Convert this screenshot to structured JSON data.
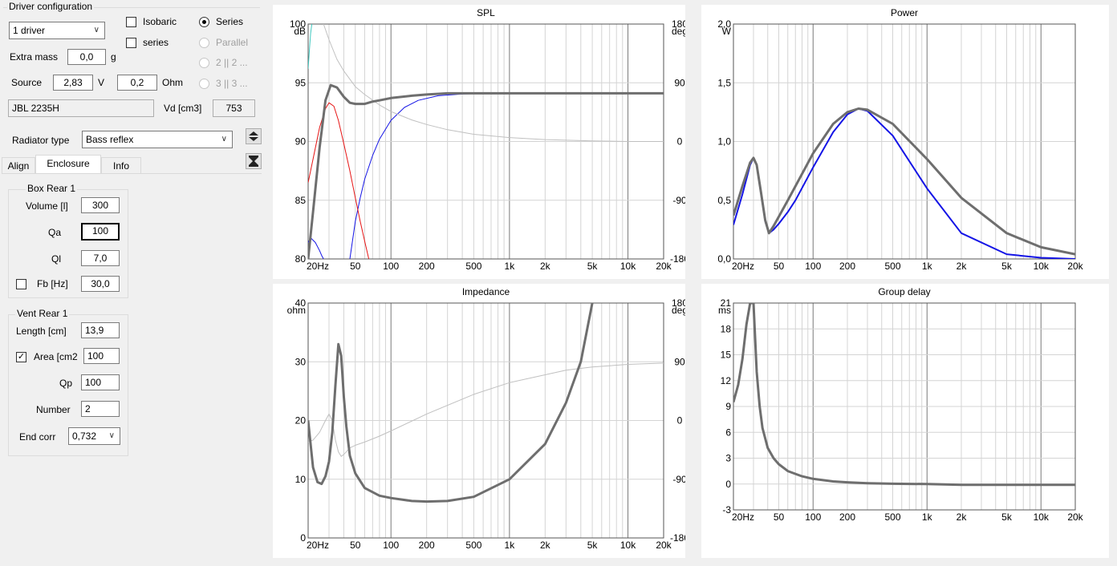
{
  "driver_config": {
    "title": "Driver configuration",
    "driver_count": "1 driver",
    "isobaric_label": "Isobaric",
    "series_check_label": "series",
    "radio_series": "Series",
    "radio_parallel": "Parallel",
    "radio_2x2": "2 || 2 ...",
    "radio_3x3": "3 || 3 ...",
    "extra_mass_label": "Extra mass",
    "extra_mass_value": "0,0",
    "extra_mass_unit": "g",
    "source_label": "Source",
    "source_voltage": "2,83",
    "voltage_unit": "V",
    "source_resistance": "0,2",
    "resistance_unit": "Ohm",
    "driver_name": "JBL 2235H",
    "vd_label": "Vd [cm3]",
    "vd_value": "753"
  },
  "radiator": {
    "label": "Radiator type",
    "value": "Bass reflex"
  },
  "tabs": [
    "Align",
    "Enclosure",
    "Info"
  ],
  "box": {
    "title": "Box Rear 1",
    "volume_label": "Volume [l]",
    "volume_value": "300",
    "qa_label": "Qa",
    "qa_value": "100",
    "ql_label": "Ql",
    "ql_value": "7,0",
    "fb_label": "Fb [Hz]",
    "fb_value": "30,0"
  },
  "vent": {
    "title": "Vent Rear 1",
    "length_label": "Length [cm]",
    "length_value": "13,9",
    "area_label": "Area [cm2",
    "area_value": "100",
    "qp_label": "Qp",
    "qp_value": "100",
    "number_label": "Number",
    "number_value": "2",
    "endcorr_label": "End corr",
    "endcorr_value": "0,732"
  },
  "colors": {
    "main_curve": "#6e6e6e",
    "phase_curve": "#c0c0c0",
    "blue": "#1414e6",
    "red": "#e61414",
    "cyan": "#40c8c0",
    "grid": "#d4d4d4",
    "grid_major": "#7a7a7a"
  },
  "chart_data": [
    {
      "type": "line",
      "title": "SPL",
      "ylabel": "dB",
      "y2label": "deg",
      "xscale": "log",
      "xlim": [
        20,
        20000
      ],
      "ylim": [
        80,
        100
      ],
      "y2lim": [
        -180,
        180
      ],
      "xticks": [
        "20Hz",
        "50",
        "100",
        "200",
        "500",
        "1k",
        "2k",
        "5k",
        "10k",
        "20k"
      ],
      "yticks": [
        "80",
        "85",
        "90",
        "95",
        "100"
      ],
      "y2ticks": [
        "-180",
        "-90",
        "0",
        "90",
        "180"
      ],
      "series": [
        {
          "color": "main_curve",
          "width": 3,
          "x": [
            20,
            22,
            25,
            28,
            31,
            35,
            40,
            45,
            50,
            60,
            70,
            80,
            100,
            150,
            200,
            300,
            500,
            1000,
            2000,
            5000,
            10000,
            20000
          ],
          "y": [
            80,
            84,
            89.5,
            93.5,
            94.8,
            94.6,
            93.8,
            93.3,
            93.2,
            93.2,
            93.4,
            93.5,
            93.7,
            93.9,
            94.0,
            94.1,
            94.1,
            94.1,
            94.1,
            94.1,
            94.1,
            94.1
          ]
        },
        {
          "color": "blue",
          "width": 1,
          "x": [
            45,
            50,
            55,
            60,
            70,
            80,
            100,
            130,
            170,
            250,
            400,
            700,
            1500,
            20000
          ],
          "y": [
            80,
            83.2,
            85.2,
            86.8,
            88.8,
            90.2,
            91.8,
            92.9,
            93.5,
            93.9,
            94.05,
            94.1,
            94.1,
            94.1
          ]
        },
        {
          "color": "red",
          "width": 1,
          "x": [
            20,
            22,
            25,
            28,
            30,
            33,
            36,
            40,
            45,
            50,
            55,
            60,
            65
          ],
          "y": [
            86.5,
            88.5,
            91.2,
            92.8,
            93.3,
            93.0,
            91.8,
            89.8,
            87.5,
            85.2,
            83.2,
            81.5,
            80
          ]
        },
        {
          "color": "blue",
          "width": 1,
          "x": [
            20,
            21,
            23,
            25,
            26,
            27
          ],
          "y": [
            81.4,
            81.8,
            81.4,
            80.7,
            80.3,
            80
          ]
        },
        {
          "color": "phase_curve",
          "width": 1,
          "x": [
            27,
            30,
            35,
            40,
            50,
            60,
            80,
            100,
            150,
            200,
            300,
            500,
            1000,
            2000,
            5000,
            10000,
            20000
          ],
          "y": [
            180,
            156,
            126,
            108,
            84,
            72,
            56,
            46,
            33,
            26,
            18,
            11,
            6,
            3,
            1,
            0,
            0
          ]
        },
        {
          "color": "cyan",
          "width": 1,
          "x": [
            20,
            20.5,
            21,
            21.5
          ],
          "y": [
            96.2,
            97.8,
            99.2,
            100
          ]
        }
      ]
    },
    {
      "type": "line",
      "title": "Power",
      "ylabel": "W",
      "xscale": "log",
      "xlim": [
        20,
        20000
      ],
      "ylim": [
        0,
        2
      ],
      "xticks": [
        "20Hz",
        "50",
        "100",
        "200",
        "500",
        "1k",
        "2k",
        "5k",
        "10k",
        "20k"
      ],
      "yticks": [
        "0,0",
        "0,5",
        "1,0",
        "1,5",
        "2,0"
      ],
      "series": [
        {
          "color": "main_curve",
          "width": 3,
          "x": [
            20,
            24,
            28,
            30,
            32,
            35,
            38,
            41,
            45,
            50,
            60,
            70,
            100,
            150,
            200,
            250,
            300,
            500,
            1000,
            2000,
            5000,
            10000,
            20000
          ],
          "y": [
            0.37,
            0.62,
            0.82,
            0.86,
            0.8,
            0.56,
            0.33,
            0.22,
            0.28,
            0.36,
            0.5,
            0.62,
            0.9,
            1.15,
            1.25,
            1.28,
            1.27,
            1.15,
            0.85,
            0.52,
            0.22,
            0.1,
            0.04
          ]
        },
        {
          "color": "blue",
          "width": 2,
          "x": [
            20,
            24,
            28,
            30,
            32,
            35,
            38,
            41,
            45,
            50,
            60,
            70,
            100,
            150,
            200,
            250,
            300,
            500,
            1000,
            2000,
            5000,
            10000,
            20000
          ],
          "y": [
            0.29,
            0.55,
            0.8,
            0.86,
            0.8,
            0.55,
            0.32,
            0.22,
            0.25,
            0.3,
            0.4,
            0.5,
            0.78,
            1.08,
            1.23,
            1.28,
            1.26,
            1.05,
            0.6,
            0.22,
            0.04,
            0.01,
            0.0
          ]
        }
      ]
    },
    {
      "type": "line",
      "title": "Impedance",
      "ylabel": "ohm",
      "y2label": "deg",
      "xscale": "log",
      "xlim": [
        20,
        20000
      ],
      "ylim": [
        0,
        40
      ],
      "y2lim": [
        -180,
        180
      ],
      "xticks": [
        "20Hz",
        "50",
        "100",
        "200",
        "500",
        "1k",
        "2k",
        "5k",
        "10k",
        "20k"
      ],
      "yticks": [
        "0",
        "10",
        "20",
        "30",
        "40"
      ],
      "y2ticks": [
        "-180",
        "-90",
        "0",
        "90",
        "180"
      ],
      "series": [
        {
          "color": "main_curve",
          "width": 3,
          "x": [
            20,
            22,
            24,
            26,
            28,
            30,
            32,
            34,
            36,
            38,
            40,
            42,
            45,
            50,
            60,
            80,
            100,
            150,
            200,
            300,
            500,
            1000,
            2000,
            3000,
            4000,
            5000
          ],
          "y": [
            20,
            12,
            9.5,
            9.2,
            10.5,
            13,
            18,
            26,
            33,
            31,
            24,
            19,
            14,
            11,
            8.5,
            7.2,
            6.8,
            6.3,
            6.2,
            6.3,
            7,
            10,
            16,
            23,
            30,
            40
          ]
        },
        {
          "color": "phase_curve",
          "width": 1,
          "x": [
            20,
            22,
            25,
            28,
            30,
            32,
            34,
            36,
            38,
            40,
            45,
            50,
            60,
            80,
            100,
            200,
            500,
            1000,
            2000,
            3000,
            5000,
            10000,
            20000
          ],
          "y": [
            -33,
            -30,
            -18,
            0,
            10,
            0,
            -30,
            -48,
            -55,
            -52,
            -42,
            -38,
            -33,
            -24,
            -16,
            10,
            40,
            58,
            70,
            77,
            82,
            86,
            88
          ]
        }
      ]
    },
    {
      "type": "line",
      "title": "Group delay",
      "ylabel": "ms",
      "xscale": "log",
      "xlim": [
        20,
        20000
      ],
      "ylim": [
        -3,
        21
      ],
      "xticks": [
        "20Hz",
        "50",
        "100",
        "200",
        "500",
        "1k",
        "2k",
        "5k",
        "10k",
        "20k"
      ],
      "yticks": [
        "-3",
        "0",
        "3",
        "6",
        "9",
        "12",
        "15",
        "18",
        "21"
      ],
      "series": [
        {
          "color": "main_curve",
          "width": 3,
          "x": [
            20,
            22,
            24,
            26,
            28,
            30,
            31,
            32,
            34,
            36,
            40,
            45,
            50,
            60,
            80,
            100,
            150,
            200,
            300,
            500,
            1000,
            2000,
            5000,
            20000
          ],
          "y": [
            9.5,
            11.5,
            14.5,
            18.5,
            21,
            21,
            17,
            13,
            9,
            6.5,
            4.2,
            3.0,
            2.3,
            1.5,
            0.9,
            0.6,
            0.3,
            0.2,
            0.1,
            0.03,
            0,
            -0.1,
            -0.1,
            -0.1
          ]
        }
      ]
    }
  ]
}
